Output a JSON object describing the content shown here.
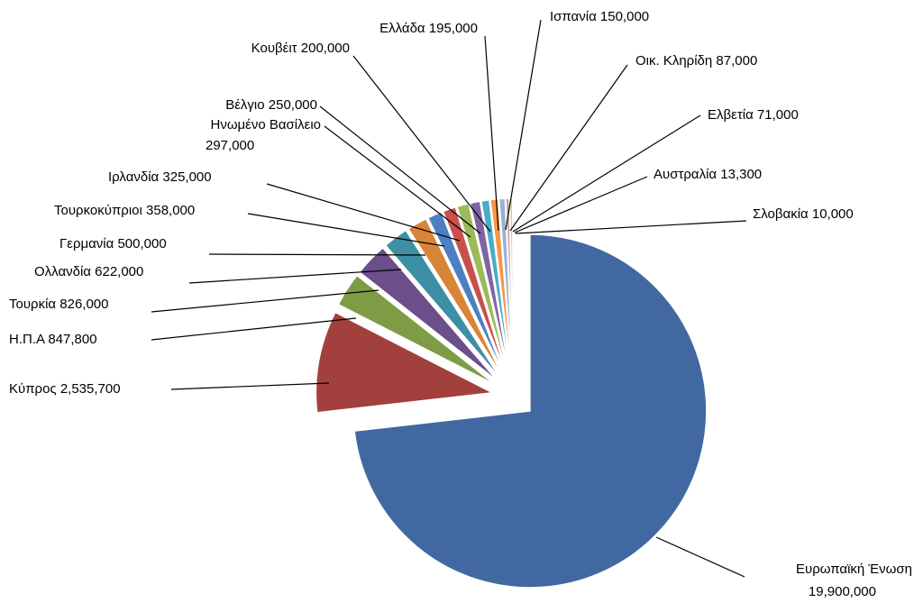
{
  "chart_data": {
    "type": "pie",
    "title": "",
    "start_angle_deg": 0,
    "direction": "clockwise",
    "exploded": "all",
    "series": [
      {
        "name": "Ευρωπαϊκή Ένωση",
        "value_label": "19,900,000",
        "value": 19900000,
        "color": "#4168A0"
      },
      {
        "name": "Κύπρος",
        "value_label": "2,535,700",
        "value": 2535700,
        "color": "#A2403D"
      },
      {
        "name": "Η.Π.Α",
        "value_label": "847,800",
        "value": 847800,
        "color": "#7E9C45"
      },
      {
        "name": "Τουρκία",
        "value_label": "826,000",
        "value": 826000,
        "color": "#6B4E8A"
      },
      {
        "name": "Ολλανδία",
        "value_label": "622,000",
        "value": 622000,
        "color": "#3D8FA3"
      },
      {
        "name": "Γερμανία",
        "value_label": "500,000",
        "value": 500000,
        "color": "#D88538"
      },
      {
        "name": "Τουρκοκύπριοι",
        "value_label": "358,000",
        "value": 358000,
        "color": "#4C80C2"
      },
      {
        "name": "Ιρλανδία",
        "value_label": "325,000",
        "value": 325000,
        "color": "#C8504C"
      },
      {
        "name": "Ηνωμένο Βασίλειο",
        "value_label": "297,000",
        "value": 297000,
        "color": "#9BBB59"
      },
      {
        "name": "Βέλγιο",
        "value_label": "250,000",
        "value": 250000,
        "color": "#8064A2"
      },
      {
        "name": "Κουβέιτ",
        "value_label": "200,000",
        "value": 200000,
        "color": "#4BACC6"
      },
      {
        "name": "Ελλάδα",
        "value_label": "195,000",
        "value": 195000,
        "color": "#F79646"
      },
      {
        "name": "Ισπανία",
        "value_label": "150,000",
        "value": 150000,
        "color": "#95B3D7"
      },
      {
        "name": "Οικ. Κληρίδη",
        "value_label": "87,000",
        "value": 87000,
        "color": "#D99694"
      },
      {
        "name": "Ελβετία",
        "value_label": "71,000",
        "value": 71000,
        "color": "#C3D69B"
      },
      {
        "name": "Αυστραλία",
        "value_label": "13,300",
        "value": 13300,
        "color": "#B2A1C7"
      },
      {
        "name": "Σλοβακία",
        "value_label": "10,000",
        "value": 10000,
        "color": "#93CDDD"
      }
    ]
  }
}
